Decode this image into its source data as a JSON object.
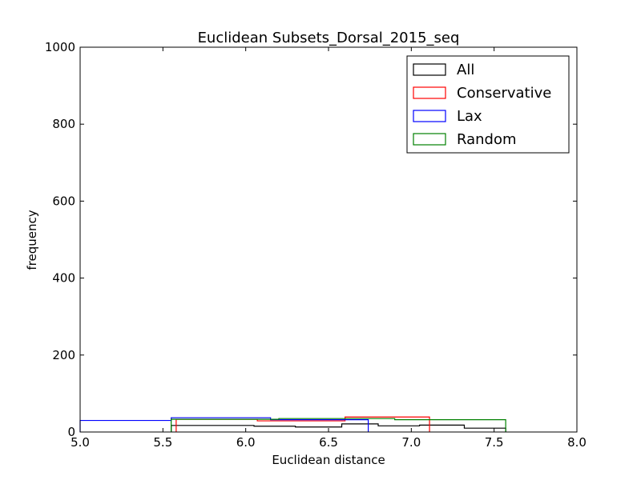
{
  "chart_data": {
    "type": "histogram-step",
    "title": "Euclidean Subsets_Dorsal_2015_seq",
    "xlabel": "Euclidean distance",
    "ylabel": "frequency",
    "xlim": [
      5.0,
      8.0
    ],
    "ylim": [
      0,
      1000
    ],
    "x_ticks": [
      "5.0",
      "5.5",
      "6.0",
      "6.5",
      "7.0",
      "7.5",
      "8.0"
    ],
    "y_ticks": [
      "0",
      "200",
      "400",
      "600",
      "800",
      "1000"
    ],
    "legend_position": "upper-right",
    "series": [
      {
        "name": "All",
        "color": "#000000",
        "edges": [
          5.55,
          6.05,
          6.3,
          6.58,
          6.8,
          7.05,
          7.32,
          7.57
        ],
        "counts": [
          17,
          15,
          13,
          21,
          16,
          18,
          10
        ]
      },
      {
        "name": "Conservative",
        "color": "#ff0000",
        "edges": [
          5.58,
          6.07,
          6.6,
          7.11
        ],
        "counts": [
          33,
          29,
          39
        ]
      },
      {
        "name": "Lax",
        "color": "#0000ff",
        "edges": [
          5.0,
          5.55,
          6.15,
          6.74
        ],
        "counts": [
          30,
          37,
          32
        ]
      },
      {
        "name": "Random",
        "color": "#008000",
        "edges": [
          5.55,
          6.2,
          6.9,
          7.57
        ],
        "counts": [
          33,
          35,
          32
        ]
      }
    ]
  }
}
